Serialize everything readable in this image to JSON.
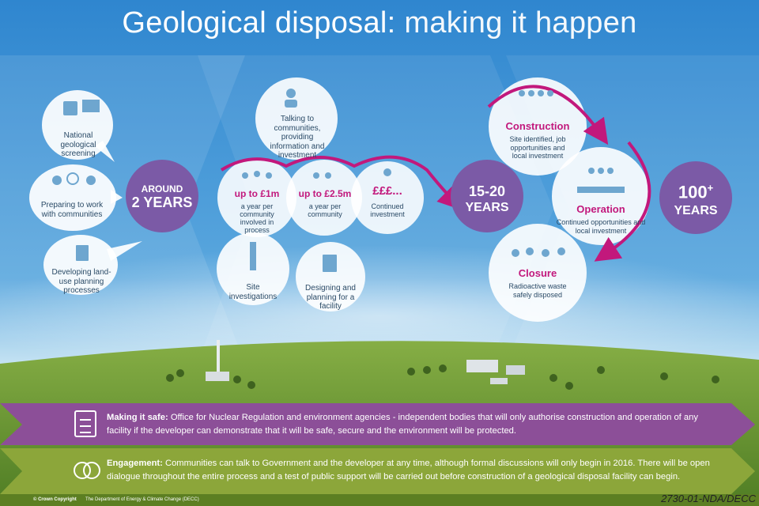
{
  "title": {
    "bold": "Geological disposal:",
    "light": "making it happen"
  },
  "left_bubbles": [
    {
      "label": "National geological screening",
      "icon": "compass-map-icon"
    },
    {
      "label": "Preparing to work with communities",
      "icon": "people-clock-icon"
    },
    {
      "label": "Developing land-use planning processes",
      "icon": "document-icon"
    }
  ],
  "stage1": {
    "line1": "AROUND",
    "line2": "2 YEARS"
  },
  "middle": {
    "talking": "Talking to communities, providing information and investment",
    "inv1": {
      "amount": "up to £1m",
      "desc": "a year per community involved in process"
    },
    "inv2": {
      "amount": "up to £2.5m",
      "desc": "a year per community"
    },
    "inv3": {
      "amount": "£££...",
      "desc": "Continued investment"
    },
    "site": "Site investigations",
    "design": "Designing and planning for a facility"
  },
  "stage2": {
    "line1": "15-20",
    "line2": "YEARS"
  },
  "right": {
    "construction": {
      "title": "Construction",
      "desc": "Site identified, job opportunities and local investment"
    },
    "operation": {
      "title": "Operation",
      "desc": "Continued opportunities and local investment"
    },
    "closure": {
      "title": "Closure",
      "desc": "Radioactive waste safely disposed"
    }
  },
  "stage3": {
    "line1": "100",
    "plus": "+",
    "line2": "YEARS"
  },
  "bands": {
    "safe": {
      "label": "Making it safe:",
      "text": "Office for Nuclear Regulation and environment agencies - independent bodies that will only authorise construction and operation of any facility if the developer can demonstrate that it will be safe, secure and the environment will be protected."
    },
    "engagement": {
      "label": "Engagement:",
      "text": "Communities can talk to Government and the developer at any time, although formal discussions will only begin in 2016. There will be open dialogue throughout the entire process and a test of public support will be carried out before construction of a geological disposal facility can begin."
    }
  },
  "footer": {
    "copyright": "© Crown Copyright",
    "dept": "The Department of Energy & Climate Change (DECC)",
    "ref": "2730-01-NDA/DECC"
  },
  "colors": {
    "magenta": "#c2187c",
    "purple": "#7b5aa6",
    "sky": "#3d8fd0",
    "grass": "#6e9a33"
  }
}
